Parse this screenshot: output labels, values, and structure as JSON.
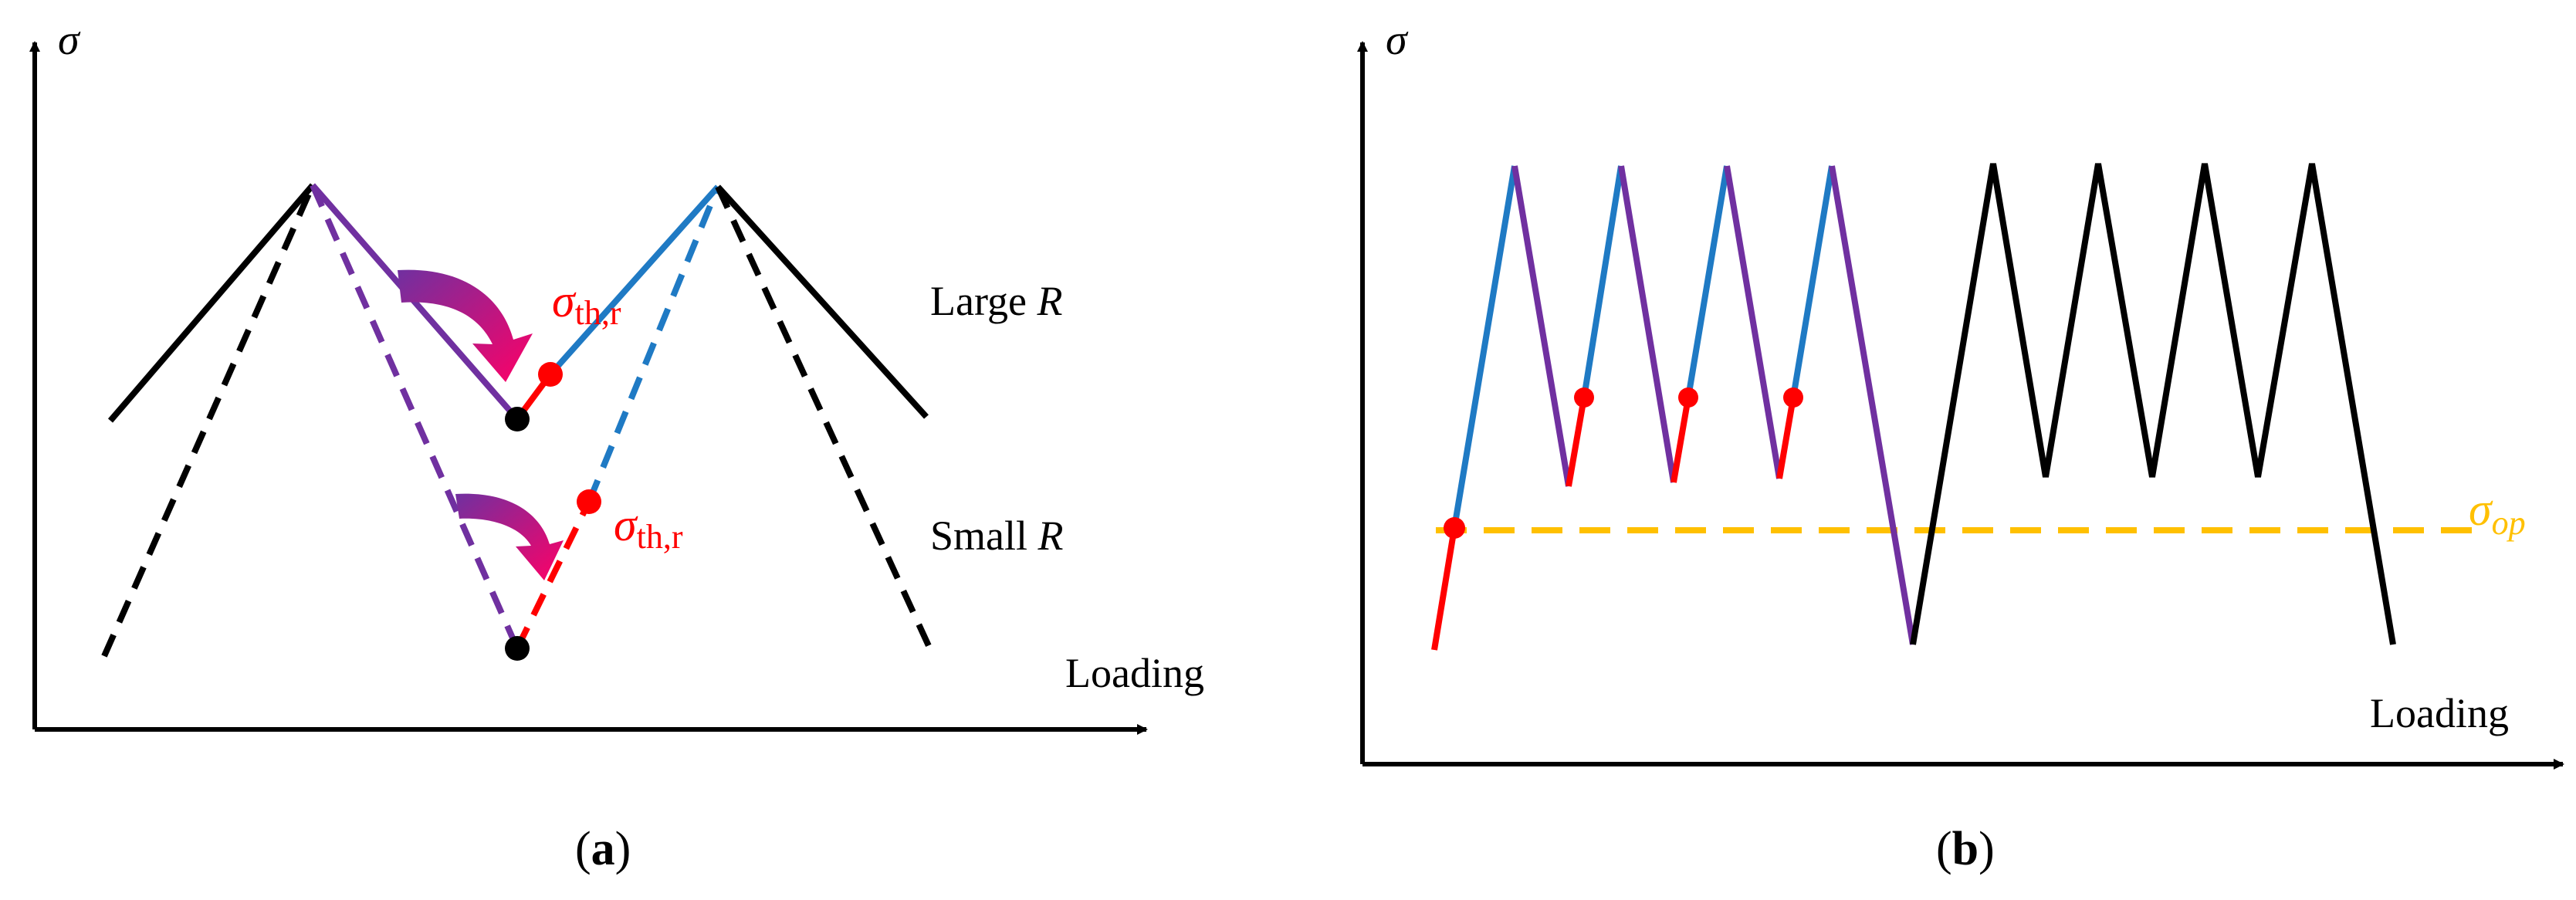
{
  "panel_a": {
    "y_axis_label": "σ",
    "x_axis_label": "Loading",
    "large_r_prefix": "Large ",
    "large_r_var": "R",
    "small_r_prefix": "Small ",
    "small_r_var": "R",
    "threshold_sym": "σ",
    "threshold_sub": "th,r",
    "caption_open": "(",
    "caption_letter": "a",
    "caption_close": ")"
  },
  "panel_b": {
    "y_axis_label": "σ",
    "x_axis_label": "Loading",
    "opening_sym": "σ",
    "opening_sub": "op",
    "caption_open": "(",
    "caption_letter": "b",
    "caption_close": ")"
  },
  "colors": {
    "black": "#000000",
    "red": "#ff0000",
    "blue": "#1f7ac4",
    "purple": "#7030a0",
    "opening_line": "#ffc000",
    "arrow_gradient_start": "#7030a0",
    "arrow_gradient_end": "#ff0066"
  }
}
